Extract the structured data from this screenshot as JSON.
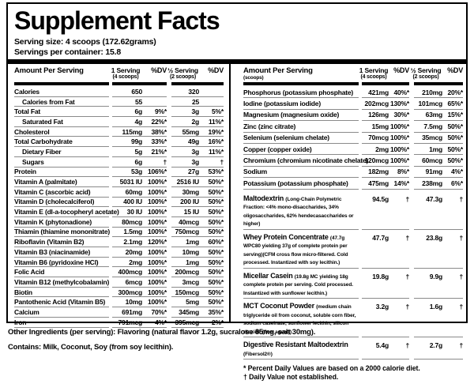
{
  "title": "Supplement Facts",
  "serving_info": {
    "serving_size": "Serving size: 4 scoops (172.62grams)",
    "servings_per_container": "Servings per container: 15.8"
  },
  "left_table": {
    "header": {
      "amount": "Amount Per Serving",
      "serving1": "1 Serving",
      "serving1_sub": "(4 scoops)",
      "dv1": "%DV",
      "serving2": "½ Serving",
      "serving2_sub": "(2 scoops)",
      "dv2": "%DV"
    },
    "rows": [
      {
        "name": "Calories",
        "v1": "650",
        "dv1": "",
        "v2": "320",
        "dv2": ""
      },
      {
        "name": "Calories from Fat",
        "indent": true,
        "v1": "55",
        "dv1": "",
        "v2": "25",
        "dv2": ""
      },
      {
        "name": "Total Fat",
        "v1": "6g",
        "dv1": "9%*",
        "v2": "3g",
        "dv2": "5%*"
      },
      {
        "name": "Saturated Fat",
        "indent": true,
        "v1": "4g",
        "dv1": "22%*",
        "v2": "2g",
        "dv2": "11%*"
      },
      {
        "name": "Cholesterol",
        "v1": "115mg",
        "dv1": "38%*",
        "v2": "55mg",
        "dv2": "19%*"
      },
      {
        "name": "Total Carbohydrate",
        "v1": "99g",
        "dv1": "33%*",
        "v2": "49g",
        "dv2": "16%*"
      },
      {
        "name": "Dietary Fiber",
        "indent": true,
        "v1": "5g",
        "dv1": "21%*",
        "v2": "3g",
        "dv2": "11%*"
      },
      {
        "name": "Sugars",
        "indent": true,
        "v1": "6g",
        "dv1": "†",
        "v2": "3g",
        "dv2": "†"
      },
      {
        "name": "Protein",
        "v1": "53g",
        "dv1": "106%*",
        "v2": "27g",
        "dv2": "53%*"
      },
      {
        "name": "Vitamin A (palmitate)",
        "v1": "5031 IU",
        "dv1": "100%*",
        "v2": "2516 IU",
        "dv2": "50%*"
      },
      {
        "name": "Vitamin C (ascorbic acid)",
        "v1": "60mg",
        "dv1": "100%*",
        "v2": "30mg",
        "dv2": "50%*"
      },
      {
        "name": "Vitamin D (cholecalciferol)",
        "v1": "400 IU",
        "dv1": "100%*",
        "v2": "200 IU",
        "dv2": "50%*"
      },
      {
        "name": "Vitamin E (dl-a-tocopheryl acetate)",
        "v1": "30 IU",
        "dv1": "100%*",
        "v2": "15 IU",
        "dv2": "50%*"
      },
      {
        "name": "Vitamin K (phytonadione)",
        "v1": "80mcg",
        "dv1": "100%*",
        "v2": "40mcg",
        "dv2": "50%*"
      },
      {
        "name": "Thiamin (thiamine mononitrate)",
        "v1": "1.5mg",
        "dv1": "100%*",
        "v2": "750mcg",
        "dv2": "50%*"
      },
      {
        "name": "Riboflavin (Vitamin B2)",
        "v1": "2.1mg",
        "dv1": "120%*",
        "v2": "1mg",
        "dv2": "60%*"
      },
      {
        "name": "Vitamin B3 (niacinamide)",
        "v1": "20mg",
        "dv1": "100%*",
        "v2": "10mg",
        "dv2": "50%*"
      },
      {
        "name": "Vitamin B6 (pyridoxine HCl)",
        "v1": "2mg",
        "dv1": "100%*",
        "v2": "1mg",
        "dv2": "50%*"
      },
      {
        "name": "Folic Acid",
        "v1": "400mcg",
        "dv1": "100%*",
        "v2": "200mcg",
        "dv2": "50%*"
      },
      {
        "name": "Vitamin B12 (methylcobalamin)",
        "v1": "6mcg",
        "dv1": "100%*",
        "v2": "3mcg",
        "dv2": "50%*"
      },
      {
        "name": "Biotin",
        "v1": "300mcg",
        "dv1": "100%*",
        "v2": "150mcg",
        "dv2": "50%*"
      },
      {
        "name": "Pantothenic Acid (Vitamin B5)",
        "v1": "10mg",
        "dv1": "100%*",
        "v2": "5mg",
        "dv2": "50%*"
      },
      {
        "name": "Calcium",
        "v1": "691mg",
        "dv1": "70%*",
        "v2": "345mg",
        "dv2": "35%*"
      },
      {
        "name": "Iron",
        "v1": "791mcg",
        "dv1": "4%*",
        "v2": "395mcg",
        "dv2": "2%*"
      }
    ]
  },
  "right_table": {
    "header": {
      "amount": "Amount Per Serving",
      "amount_sub": "(scoops)",
      "serving1": "1 Serving",
      "serving1_sub": "(4 scoops)",
      "dv1": "%DV",
      "serving2": "½ Serving",
      "serving2_sub": "(2 scoops)",
      "dv2": "%DV"
    },
    "mineral_rows": [
      {
        "name": "Phosphorus (potassium phosphate)",
        "v1": "421mg",
        "dv1": "40%*",
        "v2": "210mg",
        "dv2": "20%*"
      },
      {
        "name": "Iodine (potassium iodide)",
        "v1": "202mcg",
        "dv1": "130%*",
        "v2": "101mcg",
        "dv2": "65%*"
      },
      {
        "name": "Magnesium (magnesium oxide)",
        "v1": "126mg",
        "dv1": "30%*",
        "v2": "63mg",
        "dv2": "15%*"
      },
      {
        "name": "Zinc (zinc citrate)",
        "v1": "15mg",
        "dv1": "100%*",
        "v2": "7.5mg",
        "dv2": "50%*"
      },
      {
        "name": "Selenium (selenium chelate)",
        "v1": "70mcg",
        "dv1": "100%*",
        "v2": "35mcg",
        "dv2": "50%*"
      },
      {
        "name": "Copper (copper oxide)",
        "v1": "2mg",
        "dv1": "100%*",
        "v2": "1mg",
        "dv2": "50%*"
      },
      {
        "name": "Chromium (chromium nicotinate chelate)",
        "v1": "120mcg",
        "dv1": "100%*",
        "v2": "60mcg",
        "dv2": "50%*"
      },
      {
        "name": "Sodium",
        "v1": "182mg",
        "dv1": "8%*",
        "v2": "91mg",
        "dv2": "4%*"
      },
      {
        "name": "Potassium (potassium phosphate)",
        "v1": "475mg",
        "dv1": "14%*",
        "v2": "238mg",
        "dv2": "6%*"
      }
    ],
    "blend_rows": [
      {
        "name": "Maltodextrin",
        "desc": "(Long-Chain Polymetric Fraction: <4% mono-disaccharides, 34% oligosaccharides, 62% hendecasaccharides or higher)",
        "v1": "94.5g",
        "dv1": "†",
        "v2": "47.3g",
        "dv2": "†"
      },
      {
        "name": "Whey Protein Concentrate",
        "desc": "(47.7g WPC80 yielding 37g of complete protein per serving)(CFM cross flow micro-filtered. Cold processed. Instantized with soy lecithin.)",
        "v1": "47.7g",
        "dv1": "†",
        "v2": "23.8g",
        "dv2": "†"
      },
      {
        "name": "Micellar Casein",
        "desc": "(19.8g MC yielding 18g complete protein per serving. Cold processed. Instantized with sunflower lecithin.)",
        "v1": "19.8g",
        "dv1": "†",
        "v2": "9.9g",
        "dv2": "†"
      },
      {
        "name": "MCT Coconut Powder",
        "desc": "(medium chain triglyceride oil from coconut, soluble corn fiber, sodium caseinate, sunflower lecithin, silicon dioxide (flow agent))",
        "v1": "3.2g",
        "dv1": "†",
        "v2": "1.6g",
        "dv2": "†"
      },
      {
        "name": "Digestive Resistant Maltodextrin",
        "desc": "(Fibersol2®)",
        "v1": "5.4g",
        "dv1": "†",
        "v2": "2.7g",
        "dv2": "†"
      }
    ],
    "footnotes": [
      "* Percent Daily Values are based on a 2000 calorie diet.",
      "† Daily Value not established."
    ]
  },
  "footer": {
    "other_ingredients": "Other Ingredients (per serving): Flavoring (natural flavor 1.2g, sucralose 85mg, salt 30mg).",
    "contains": "Contains: Milk, Coconut, Soy (from soy lecithin)."
  }
}
